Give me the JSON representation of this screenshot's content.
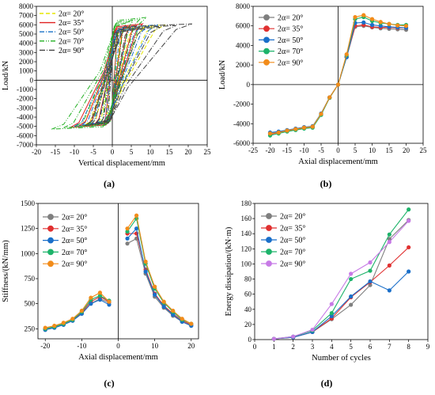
{
  "chart_data": [
    {
      "type": "line",
      "panel_label": "(a)",
      "xlabel": "Vertical displacement/mm",
      "ylabel": "Load/kN",
      "xlim": [
        -20,
        25
      ],
      "ylim": [
        -7000,
        8000
      ],
      "xticks": [
        -20,
        -15,
        -10,
        -5,
        0,
        5,
        10,
        15,
        20,
        25
      ],
      "yticks": [
        -7000,
        -6000,
        -5000,
        -4000,
        -3000,
        -2000,
        -1000,
        0,
        1000,
        2000,
        3000,
        4000,
        5000,
        6000,
        7000,
        8000
      ],
      "legend": "top-left",
      "series": [
        {
          "name": "2α= 20°",
          "color": "#e6e600",
          "dash": "5,3",
          "xmin": -9,
          "xmax": 14,
          "ytop": 6000,
          "ybot": -5000,
          "loops": 5
        },
        {
          "name": "2α= 35°",
          "color": "#e02020",
          "dash": "",
          "xmin": -11,
          "xmax": 8,
          "ytop": 6100,
          "ybot": -5100,
          "loops": 5
        },
        {
          "name": "2α= 50°",
          "color": "#1a73c7",
          "dash": "6,2,1,2",
          "xmin": -10,
          "xmax": 12,
          "ytop": 6000,
          "ybot": -5000,
          "loops": 5
        },
        {
          "name": "2α= 70°",
          "color": "#22b022",
          "dash": "6,2,1,2,1,2",
          "xmin": -16,
          "xmax": 9,
          "ytop": 6800,
          "ybot": -5300,
          "loops": 5
        },
        {
          "name": "2α= 90°",
          "color": "#444444",
          "dash": "7,2,1,2",
          "xmin": -7,
          "xmax": 21,
          "ytop": 6100,
          "ybot": -4900,
          "loops": 5
        }
      ]
    },
    {
      "type": "line",
      "panel_label": "(b)",
      "xlabel": "Axial displacement/mm",
      "ylabel": "Load/kN",
      "xlim": [
        -25,
        25
      ],
      "ylim": [
        -6000,
        8000
      ],
      "xticks": [
        -25,
        -20,
        -15,
        -10,
        -5,
        0,
        5,
        10,
        15,
        20,
        25
      ],
      "yticks": [
        -6000,
        -4000,
        -2000,
        0,
        2000,
        4000,
        6000,
        8000
      ],
      "legend": "top-left",
      "x": [
        -20,
        -17.5,
        -15,
        -12.5,
        -10,
        -7.5,
        -5,
        -2.5,
        0,
        2.5,
        5,
        7.5,
        10,
        12.5,
        15,
        17.5,
        20
      ],
      "series": [
        {
          "name": "2α= 20°",
          "color": "#7f7f7f",
          "values": [
            -5000,
            -4850,
            -4700,
            -4550,
            -4400,
            -4300,
            -3000,
            -1300,
            0,
            2800,
            5900,
            6000,
            5850,
            5750,
            5700,
            5650,
            5600
          ]
        },
        {
          "name": "2α= 35°",
          "color": "#e03030",
          "values": [
            -5100,
            -4900,
            -4750,
            -4600,
            -4450,
            -4350,
            -3050,
            -1350,
            0,
            2850,
            6000,
            6100,
            5900,
            5850,
            5850,
            5800,
            5800
          ]
        },
        {
          "name": "2α= 50°",
          "color": "#1a6fc9",
          "values": [
            -4900,
            -4800,
            -4650,
            -4500,
            -4350,
            -4250,
            -2950,
            -1300,
            0,
            2800,
            6300,
            6350,
            6100,
            6000,
            5900,
            5850,
            5800
          ]
        },
        {
          "name": "2α= 70°",
          "color": "#1db36a",
          "values": [
            -5200,
            -5000,
            -4800,
            -4650,
            -4500,
            -4400,
            -3100,
            -1350,
            0,
            3000,
            6700,
            6900,
            6500,
            6300,
            6200,
            6100,
            6100
          ]
        },
        {
          "name": "2α= 90°",
          "color": "#f28c1a",
          "values": [
            -5000,
            -4900,
            -4700,
            -4550,
            -4400,
            -4300,
            -3000,
            -1300,
            0,
            3100,
            6900,
            7100,
            6700,
            6400,
            6200,
            6050,
            6000
          ]
        }
      ]
    },
    {
      "type": "line",
      "panel_label": "(c)",
      "xlabel": "Axial displacement/mm",
      "ylabel": "Stiffness/(kN/mm)",
      "xlim": [
        -22,
        22
      ],
      "ylim": [
        150,
        1500
      ],
      "xticks": [
        -20,
        -10,
        0,
        10,
        20
      ],
      "yticks": [
        250,
        500,
        750,
        1000,
        1250,
        1500
      ],
      "legend": "top-left",
      "neg_x": [
        -20,
        -17.5,
        -15,
        -12.5,
        -10,
        -7.5,
        -5,
        -2.5
      ],
      "pos_x": [
        2.5,
        5,
        7.5,
        10,
        12.5,
        15,
        17.5,
        20
      ],
      "series": [
        {
          "name": "2α= 20°",
          "color": "#7f7f7f",
          "neg": [
            240,
            260,
            290,
            330,
            400,
            500,
            550,
            510
          ],
          "pos": [
            1100,
            1150,
            800,
            570,
            460,
            380,
            320,
            280
          ]
        },
        {
          "name": "2α= 35°",
          "color": "#e03030",
          "neg": [
            250,
            270,
            300,
            340,
            410,
            520,
            570,
            520
          ],
          "pos": [
            1200,
            1200,
            840,
            600,
            480,
            400,
            330,
            290
          ]
        },
        {
          "name": "2α= 50°",
          "color": "#1a6fc9",
          "neg": [
            240,
            260,
            290,
            330,
            400,
            500,
            540,
            490
          ],
          "pos": [
            1150,
            1250,
            820,
            590,
            470,
            390,
            320,
            280
          ]
        },
        {
          "name": "2α= 70°",
          "color": "#1db36a",
          "neg": [
            250,
            270,
            300,
            340,
            420,
            540,
            580,
            530
          ],
          "pos": [
            1220,
            1350,
            900,
            650,
            510,
            420,
            340,
            300
          ]
        },
        {
          "name": "2α= 90°",
          "color": "#f28c1a",
          "neg": [
            260,
            280,
            310,
            350,
            430,
            560,
            610,
            520
          ],
          "pos": [
            1250,
            1380,
            920,
            670,
            520,
            430,
            350,
            300
          ]
        }
      ]
    },
    {
      "type": "line",
      "panel_label": "(d)",
      "xlabel": "Number of cycles",
      "ylabel": "Energy dissipation/(kN·m)",
      "xlim": [
        0,
        9
      ],
      "ylim": [
        0,
        180
      ],
      "xticks": [
        0,
        1,
        2,
        3,
        4,
        5,
        6,
        7,
        8,
        9
      ],
      "yticks": [
        0,
        20,
        40,
        60,
        80,
        100,
        120,
        140,
        160,
        180
      ],
      "legend": "top-left",
      "x": [
        1,
        2,
        3,
        4,
        5,
        6,
        7,
        8
      ],
      "series": [
        {
          "name": "2α= 20°",
          "color": "#7f7f7f",
          "values": [
            1,
            3,
            10,
            27,
            46,
            72,
            133,
            158
          ]
        },
        {
          "name": "2α= 35°",
          "color": "#e03030",
          "values": [
            1,
            3,
            10,
            28,
            56,
            76,
            98,
            122
          ]
        },
        {
          "name": "2α= 50°",
          "color": "#1a6fc9",
          "values": [
            1,
            3,
            10,
            31,
            57,
            77,
            65,
            90
          ]
        },
        {
          "name": "2α= 70°",
          "color": "#1db36a",
          "values": [
            1,
            4,
            12,
            35,
            80,
            91,
            139,
            172
          ]
        },
        {
          "name": "2α= 90°",
          "color": "#c77ae6",
          "values": [
            1,
            4,
            13,
            47,
            87,
            102,
            129,
            157
          ]
        }
      ]
    }
  ]
}
